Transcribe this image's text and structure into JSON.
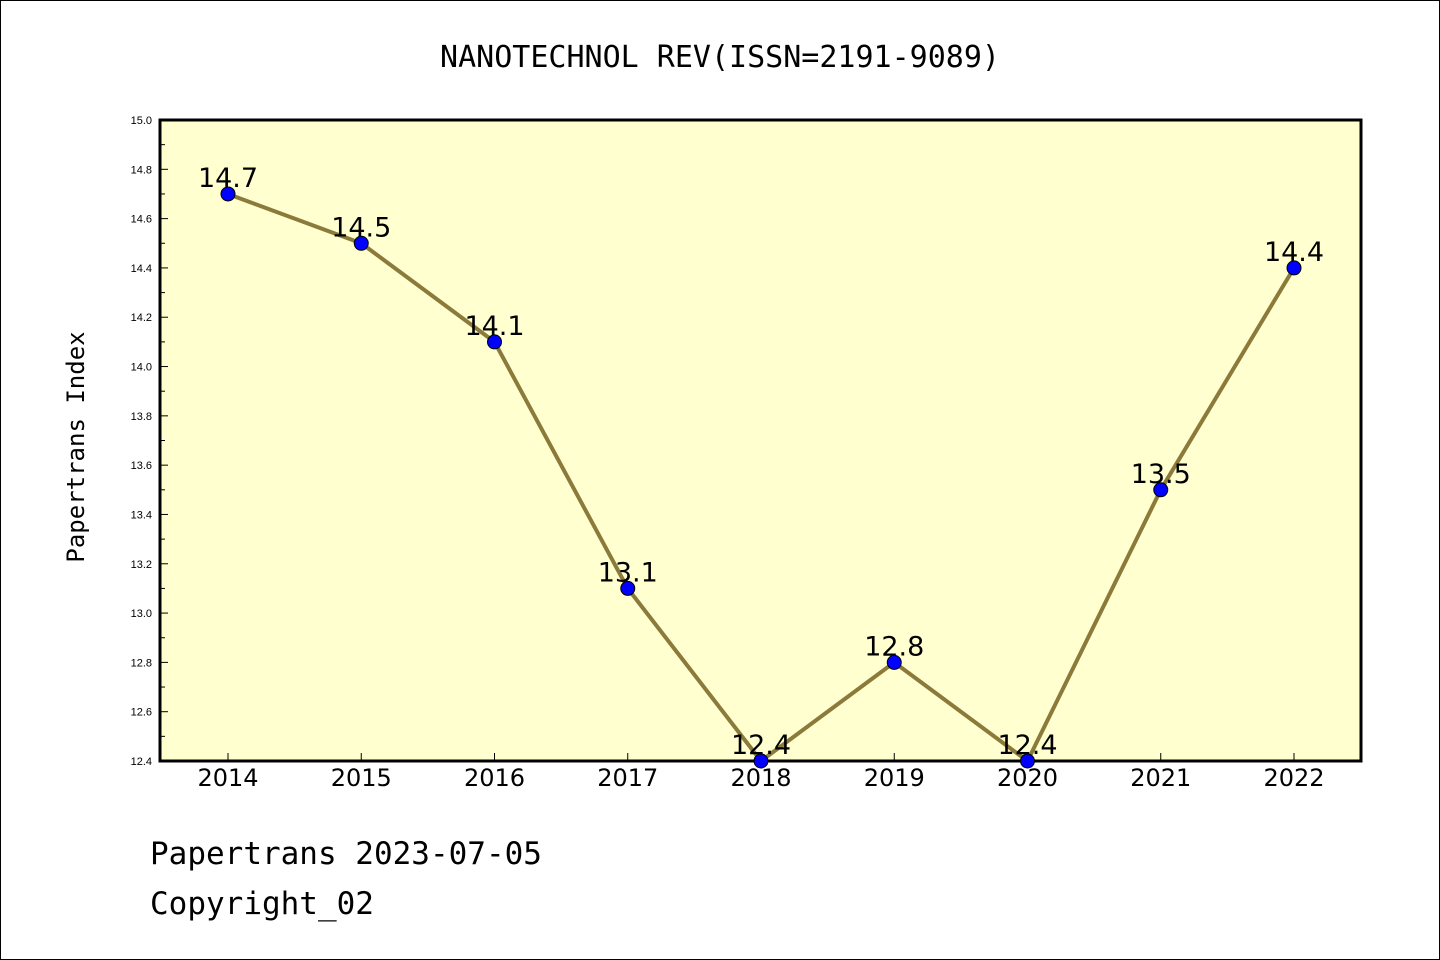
{
  "chart_data": {
    "type": "line",
    "title": "NANOTECHNOL REV(ISSN=2191-9089)",
    "xlabel": "",
    "ylabel": "Papertrans Index",
    "categories": [
      "2014",
      "2015",
      "2016",
      "2017",
      "2018",
      "2019",
      "2020",
      "2021",
      "2022"
    ],
    "values": [
      14.7,
      14.5,
      14.1,
      13.1,
      12.4,
      12.8,
      12.4,
      13.5,
      14.4
    ],
    "data_labels": [
      "14.7",
      "14.5",
      "14.1",
      "13.1",
      "12.4",
      "12.8",
      "12.4",
      "13.5",
      "14.4"
    ],
    "ylim": [
      12.4,
      15.0
    ],
    "yticks": [
      "12.4",
      "12.6",
      "12.8",
      "13.0",
      "13.2",
      "13.4",
      "13.6",
      "13.8",
      "14.0",
      "14.2",
      "14.4",
      "14.6",
      "14.8",
      "15.0"
    ],
    "grid": false,
    "legend": "none",
    "colors": {
      "plot_background": "#ffffd0",
      "line": "#8b7a3a",
      "marker": "#0000ff"
    }
  },
  "footer": {
    "line1": "Papertrans 2023-07-05",
    "line2": "Copyright_02"
  }
}
